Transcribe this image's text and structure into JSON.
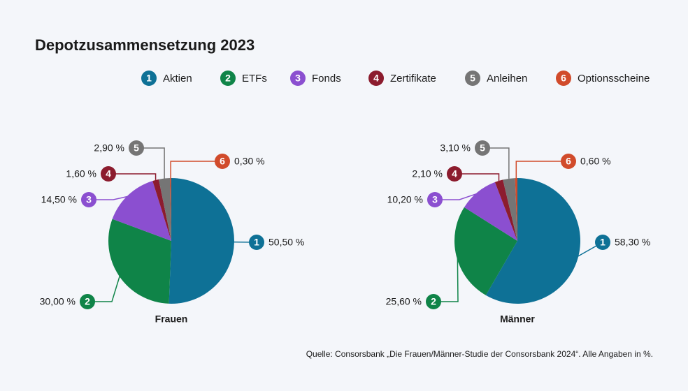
{
  "title": "Depotzusammensetzung 2023",
  "source": "Quelle: Consorsbank „Die Frauen/Männer-Studie der Consorsbank 2024“. Alle Angaben in %.",
  "chart_data": [
    {
      "type": "pie",
      "title": "Frauen",
      "categories": [
        "Aktien",
        "ETFs",
        "Fonds",
        "Zertifikate",
        "Anleihen",
        "Optionsscheine"
      ],
      "badges": [
        "1",
        "2",
        "3",
        "4",
        "5",
        "6"
      ],
      "colors": [
        "#0e7196",
        "#0f8448",
        "#8b4fd0",
        "#8c1c2e",
        "#757575",
        "#d14b2b"
      ],
      "values": [
        50.5,
        30.0,
        14.5,
        1.6,
        2.9,
        0.3
      ],
      "value_labels": [
        "50,50 %",
        "30,00 %",
        "14,50 %",
        "1,60 %",
        "2,90 %",
        "0,30 %"
      ]
    },
    {
      "type": "pie",
      "title": "Männer",
      "categories": [
        "Aktien",
        "ETFs",
        "Fonds",
        "Zertifikate",
        "Anleihen",
        "Optionsscheine"
      ],
      "badges": [
        "1",
        "2",
        "3",
        "4",
        "5",
        "6"
      ],
      "colors": [
        "#0e7196",
        "#0f8448",
        "#8b4fd0",
        "#8c1c2e",
        "#757575",
        "#d14b2b"
      ],
      "values": [
        58.3,
        25.6,
        10.2,
        2.1,
        3.1,
        0.6
      ],
      "value_labels": [
        "58,30 %",
        "25,60 %",
        "10,20 %",
        "2,10 %",
        "3,10 %",
        "0,60 %"
      ]
    }
  ]
}
